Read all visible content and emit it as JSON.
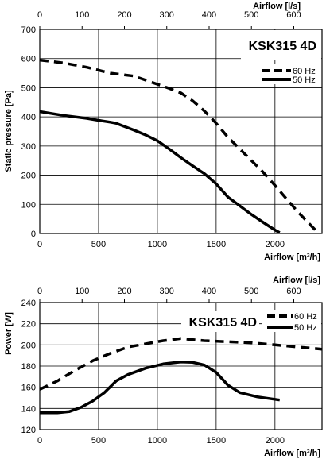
{
  "chart_data": [
    {
      "type": "line",
      "title": "KSK315 4D",
      "xlabel": "Airflow [m³/h]",
      "x2label": "Airflow [l/s]",
      "ylabel": "Static pressure [Pa]",
      "xlim": [
        0,
        2400
      ],
      "x2lim": [
        0,
        666.7
      ],
      "ylim": [
        0,
        700
      ],
      "xticks": [
        "0",
        "500",
        "1000",
        "1500",
        "2000"
      ],
      "x2ticks": [
        "0",
        "100",
        "200",
        "300",
        "400",
        "500",
        "600"
      ],
      "yticks": [
        "0",
        "100",
        "200",
        "300",
        "400",
        "500",
        "600",
        "700"
      ],
      "grid": true,
      "legend_position": "top-right",
      "series": [
        {
          "name": "60 Hz",
          "style": "dashed",
          "x": [
            0,
            200,
            400,
            600,
            800,
            1000,
            1100,
            1200,
            1300,
            1400,
            1500,
            1600,
            1700,
            1800,
            1900,
            2000,
            2100,
            2200,
            2300,
            2360
          ],
          "y": [
            595,
            585,
            570,
            550,
            540,
            512,
            498,
            482,
            455,
            420,
            378,
            330,
            290,
            250,
            210,
            165,
            118,
            72,
            30,
            5
          ]
        },
        {
          "name": "50 Hz",
          "style": "solid",
          "x": [
            0,
            200,
            400,
            500,
            600,
            650,
            800,
            900,
            1000,
            1100,
            1200,
            1300,
            1400,
            1500,
            1600,
            1700,
            1800,
            1900,
            2000,
            2040
          ],
          "y": [
            418,
            405,
            395,
            388,
            382,
            378,
            355,
            338,
            318,
            290,
            260,
            232,
            205,
            170,
            125,
            95,
            65,
            38,
            12,
            3
          ]
        }
      ]
    },
    {
      "type": "line",
      "title": "KSK315 4D",
      "xlabel": "Airflow [m³/h]",
      "x2label": "Airflow [l/s]",
      "ylabel": "Power [W]",
      "xlim": [
        0,
        2400
      ],
      "x2lim": [
        0,
        666.7
      ],
      "ylim": [
        120,
        240
      ],
      "xticks": [
        "0",
        "500",
        "1000",
        "1500",
        "2000"
      ],
      "x2ticks": [
        "0",
        "100",
        "200",
        "300",
        "400",
        "500",
        "600"
      ],
      "yticks": [
        "120",
        "140",
        "160",
        "180",
        "200",
        "220",
        "240"
      ],
      "grid": true,
      "legend_position": "top-right",
      "series": [
        {
          "name": "60 Hz",
          "style": "dashed",
          "x": [
            0,
            150,
            300,
            450,
            600,
            750,
            900,
            1050,
            1200,
            1400,
            1600,
            1800,
            2000,
            2200,
            2400
          ],
          "y": [
            158,
            166,
            176,
            185,
            192,
            198,
            201,
            204,
            206,
            204,
            203,
            202,
            200,
            198,
            196
          ]
        },
        {
          "name": "50 Hz",
          "style": "solid",
          "x": [
            0,
            150,
            250,
            350,
            450,
            550,
            650,
            750,
            900,
            1050,
            1200,
            1300,
            1400,
            1500,
            1600,
            1700,
            1850,
            2040
          ],
          "y": [
            136,
            136,
            137,
            141,
            147,
            155,
            166,
            172,
            178,
            182,
            184,
            183.5,
            181,
            174,
            162,
            155,
            151,
            148
          ]
        }
      ]
    }
  ]
}
